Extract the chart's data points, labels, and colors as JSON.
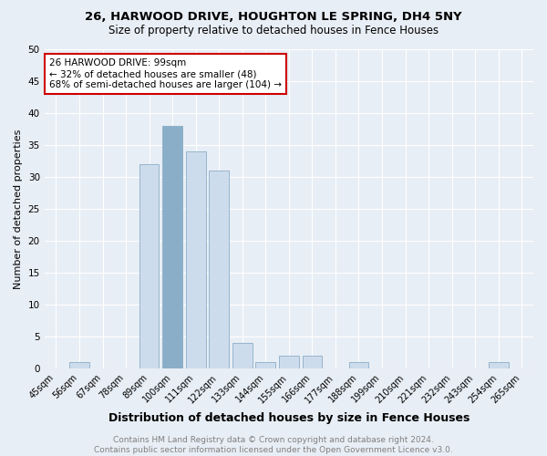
{
  "title": "26, HARWOOD DRIVE, HOUGHTON LE SPRING, DH4 5NY",
  "subtitle": "Size of property relative to detached houses in Fence Houses",
  "xlabel": "Distribution of detached houses by size in Fence Houses",
  "ylabel": "Number of detached properties",
  "categories": [
    "45sqm",
    "56sqm",
    "67sqm",
    "78sqm",
    "89sqm",
    "100sqm",
    "111sqm",
    "122sqm",
    "133sqm",
    "144sqm",
    "155sqm",
    "166sqm",
    "177sqm",
    "188sqm",
    "199sqm",
    "210sqm",
    "221sqm",
    "232sqm",
    "243sqm",
    "254sqm",
    "265sqm"
  ],
  "values": [
    0,
    1,
    0,
    0,
    32,
    38,
    34,
    31,
    4,
    1,
    2,
    2,
    0,
    1,
    0,
    0,
    0,
    0,
    0,
    1,
    0
  ],
  "bar_color": "#cddcec",
  "bar_edge_color": "#8aaec8",
  "highlighted_bar_index": 5,
  "highlight_color": "#8aaec8",
  "ylim": [
    0,
    50
  ],
  "yticks": [
    0,
    5,
    10,
    15,
    20,
    25,
    30,
    35,
    40,
    45,
    50
  ],
  "annotation_text": "26 HARWOOD DRIVE: 99sqm\n← 32% of detached houses are smaller (48)\n68% of semi-detached houses are larger (104) →",
  "annotation_box_facecolor": "#ffffff",
  "annotation_box_edgecolor": "#cc0000",
  "footer_line1": "Contains HM Land Registry data © Crown copyright and database right 2024.",
  "footer_line2": "Contains public sector information licensed under the Open Government Licence v3.0.",
  "background_color": "#e8eef5",
  "grid_color": "#ffffff",
  "title_fontsize": 9.5,
  "subtitle_fontsize": 8.5,
  "xlabel_fontsize": 9,
  "ylabel_fontsize": 8,
  "tick_fontsize": 7,
  "annotation_fontsize": 7.5,
  "footer_fontsize": 6.5
}
